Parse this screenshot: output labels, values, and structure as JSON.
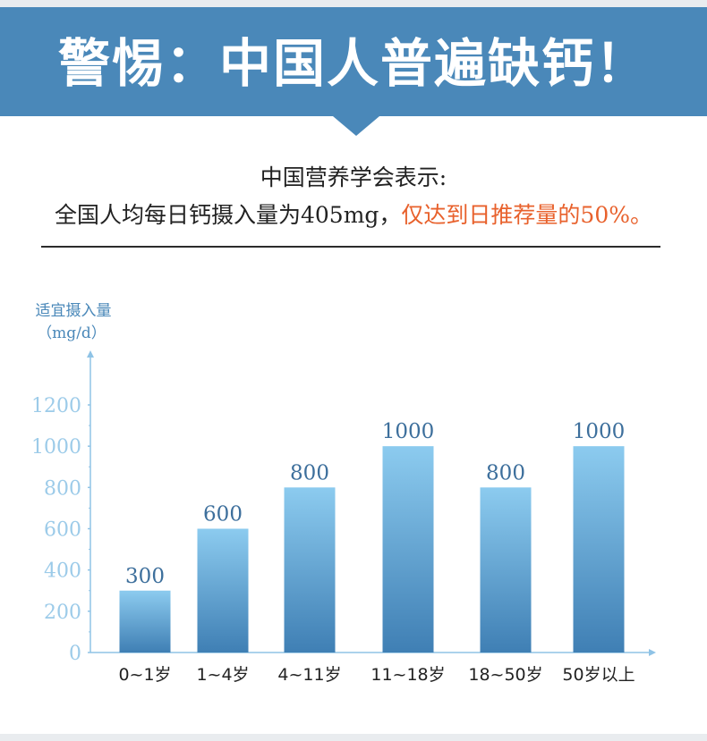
{
  "banner": {
    "title": "警惕：中国人普遍缺钙！"
  },
  "subhead": "中国营养学会表示:",
  "statement": {
    "main": "全国人均每日钙摄入量为405mg，",
    "highlight": "仅达到日推荐量的50%。"
  },
  "colors": {
    "banner": "#4a88b9",
    "highlight": "#e8612c",
    "axis": "#8fc3e6",
    "bar_top": "#8ccbef",
    "bar_bottom": "#3f7fb4",
    "tick_text": "#9ccbe9",
    "value_text": "#3d6f9c"
  },
  "chart_data": {
    "type": "bar",
    "ylabel": "适宜摄入量",
    "yunit": "（mg/d）",
    "categories": [
      "0~1岁",
      "1~4岁",
      "4~11岁",
      "11~18岁",
      "18~50岁",
      "50岁以上"
    ],
    "values": [
      300,
      600,
      800,
      1000,
      800,
      1000
    ],
    "value_labels": [
      "300",
      "600",
      "800",
      "1000",
      "800",
      "1000"
    ],
    "yticks": [
      0,
      200,
      400,
      600,
      800,
      1000,
      1200
    ],
    "ylim": [
      0,
      1200
    ],
    "grid": false,
    "legend": "none"
  }
}
